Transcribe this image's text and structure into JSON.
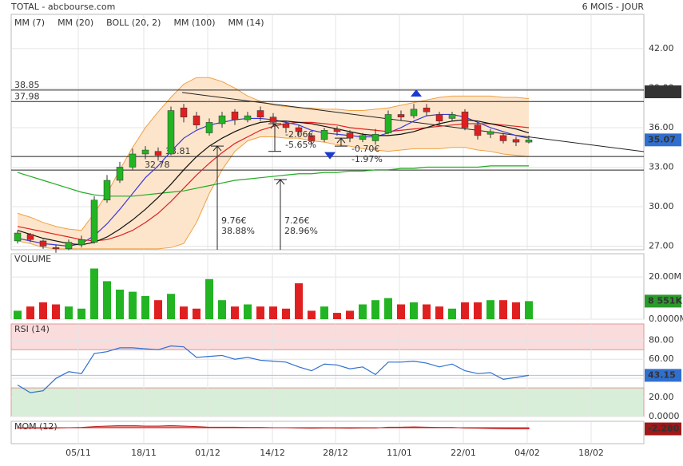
{
  "header": {
    "title": "TOTAL - abcbourse.com",
    "period": "6 MOIS - JOUR"
  },
  "chart_data": [
    {
      "type": "candlestick",
      "open": [
        27.4,
        27.9,
        27.4,
        26.9,
        26.8,
        27.1,
        27.3,
        30.5,
        32.0,
        33.0,
        34.0,
        34.2,
        34.0,
        37.5,
        36.9,
        35.6,
        36.3,
        37.2,
        36.6,
        37.3,
        36.8,
        36.3,
        36.0,
        35.4,
        35.1,
        35.9,
        35.6,
        35.1,
        35.0,
        35.6,
        37.0,
        36.9,
        37.5,
        37.0,
        36.7,
        37.2,
        36.2,
        35.5,
        35.4,
        35.1,
        34.9
      ],
      "high": [
        28.2,
        28.0,
        27.5,
        27.1,
        27.5,
        27.8,
        30.8,
        32.4,
        33.4,
        34.4,
        34.6,
        34.5,
        37.6,
        37.8,
        37.2,
        36.7,
        37.2,
        37.4,
        37.2,
        37.6,
        37.1,
        36.5,
        36.2,
        35.6,
        36.0,
        36.1,
        35.8,
        35.6,
        35.9,
        37.3,
        37.3,
        37.8,
        37.8,
        37.2,
        37.2,
        37.4,
        36.4,
        35.9,
        35.6,
        35.3,
        35.4
      ],
      "low": [
        27.2,
        27.3,
        26.8,
        26.5,
        26.7,
        26.9,
        27.2,
        30.3,
        31.8,
        32.8,
        33.6,
        33.5,
        33.9,
        36.4,
        35.9,
        35.4,
        36.0,
        36.2,
        36.4,
        36.5,
        36.1,
        35.6,
        35.4,
        34.7,
        34.9,
        35.4,
        34.9,
        34.9,
        34.7,
        35.5,
        36.5,
        36.7,
        36.9,
        36.2,
        36.5,
        35.8,
        35.1,
        35.2,
        34.8,
        34.6,
        34.8
      ],
      "close": [
        28.0,
        27.5,
        27.0,
        26.8,
        27.3,
        27.5,
        30.5,
        32.0,
        33.0,
        34.0,
        34.3,
        33.9,
        37.3,
        36.8,
        36.2,
        36.4,
        36.9,
        36.6,
        36.9,
        36.8,
        36.4,
        36.0,
        35.7,
        35.0,
        35.8,
        35.7,
        35.2,
        35.4,
        35.5,
        37.0,
        36.8,
        37.4,
        37.2,
        36.5,
        37.0,
        36.0,
        35.4,
        35.7,
        35.0,
        34.9,
        35.07
      ],
      "up_color": "#22b422",
      "down_color": "#e02020",
      "series": [
        {
          "name": "MM (7)",
          "color": "#3a3ad8",
          "values": [
            27.6,
            27.4,
            27.2,
            27.1,
            27.0,
            27.2,
            27.8,
            28.7,
            29.8,
            31,
            32.2,
            33.1,
            34.2,
            35.2,
            35.8,
            36.2,
            36.4,
            36.6,
            36.7,
            36.7,
            36.6,
            36.4,
            36.2,
            35.8,
            35.6,
            35.5,
            35.4,
            35.3,
            35.3,
            35.6,
            36,
            36.5,
            36.9,
            37,
            37,
            36.8,
            36.4,
            36,
            35.7,
            35.4,
            35.2
          ]
        },
        {
          "name": "MM (20)",
          "color": "#e02020",
          "values": [
            28.5,
            28.3,
            28.1,
            27.9,
            27.7,
            27.5,
            27.4,
            27.5,
            27.8,
            28.2,
            28.8,
            29.5,
            30.4,
            31.4,
            32.4,
            33.3,
            34.1,
            34.8,
            35.3,
            35.8,
            36.1,
            36.3,
            36.4,
            36.4,
            36.3,
            36.2,
            36,
            35.9,
            35.8,
            35.7,
            35.8,
            35.9,
            36,
            36.1,
            36.2,
            36.3,
            36.3,
            36.3,
            36.2,
            36.1,
            36.0
          ]
        },
        {
          "name": "BOLL (20, 2)",
          "color": "#f0a040",
          "band_color": "#fde5cc",
          "upper": [
            29.5,
            29.2,
            28.8,
            28.5,
            28.3,
            28.2,
            29.5,
            31,
            32.8,
            34.5,
            36,
            37.2,
            38.3,
            39.3,
            39.8,
            39.8,
            39.5,
            39.0,
            38.4,
            38.0,
            37.7,
            37.6,
            37.5,
            37.5,
            37.4,
            37.4,
            37.3,
            37.3,
            37.4,
            37.5,
            37.7,
            37.9,
            38.1,
            38.3,
            38.4,
            38.4,
            38.4,
            38.4,
            38.3,
            38.3,
            38.2
          ],
          "lower": [
            27.4,
            27.2,
            26.9,
            26.8,
            26.8,
            26.8,
            26.8,
            26.8,
            26.8,
            26.8,
            26.8,
            26.8,
            26.9,
            27.2,
            28.8,
            31,
            32.8,
            34.2,
            35.0,
            35.3,
            35.3,
            35.2,
            35.2,
            35.0,
            34.9,
            34.7,
            34.6,
            34.4,
            34.3,
            34.2,
            34.3,
            34.4,
            34.4,
            34.4,
            34.5,
            34.5,
            34.3,
            34.2,
            34.0,
            33.9,
            33.8
          ]
        },
        {
          "name": "MM (100)",
          "color": "#22aa22",
          "values": [
            32.6,
            32.3,
            32,
            31.7,
            31.4,
            31.1,
            30.9,
            30.8,
            30.8,
            30.8,
            30.9,
            31,
            31.1,
            31.2,
            31.4,
            31.6,
            31.8,
            32,
            32.1,
            32.2,
            32.3,
            32.4,
            32.5,
            32.5,
            32.6,
            32.6,
            32.7,
            32.7,
            32.8,
            32.8,
            32.9,
            32.9,
            33,
            33,
            33,
            33,
            33,
            33.1,
            33.1,
            33.1,
            33.1
          ]
        },
        {
          "name": "MM (14)",
          "color": "#111111",
          "values": [
            28.2,
            27.9,
            27.6,
            27.4,
            27.2,
            27.1,
            27.3,
            27.7,
            28.3,
            29,
            29.8,
            30.7,
            31.7,
            32.8,
            33.8,
            34.6,
            35.2,
            35.7,
            36.1,
            36.4,
            36.5,
            36.5,
            36.4,
            36.3,
            36.1,
            35.9,
            35.7,
            35.5,
            35.4,
            35.4,
            35.5,
            35.7,
            36,
            36.3,
            36.5,
            36.6,
            36.5,
            36.3,
            36.1,
            35.9,
            35.6
          ]
        }
      ],
      "ylim": [
        26.73,
        44.6
      ],
      "yticks": [
        {
          "value": 42,
          "label": "42.00"
        },
        {
          "value": 39,
          "label": "39.00"
        },
        {
          "value": 36,
          "label": "36.00"
        },
        {
          "value": 33,
          "label": "33.00"
        },
        {
          "value": 30,
          "label": "30.00"
        },
        {
          "value": 27,
          "label": "27.00"
        }
      ],
      "xlim": [
        -0.5,
        49
      ],
      "xticks": [
        {
          "value": 4.75,
          "label": "05/11"
        },
        {
          "value": 9.875,
          "label": "18/11"
        },
        {
          "value": 14.875,
          "label": "01/12"
        },
        {
          "value": 19.94,
          "label": "14/12"
        },
        {
          "value": 24.875,
          "label": "28/12"
        },
        {
          "value": 29.875,
          "label": "11/01"
        },
        {
          "value": 34.875,
          "label": "22/01"
        },
        {
          "value": 39.875,
          "label": "04/02"
        },
        {
          "value": 44.875,
          "label": "18/02"
        }
      ],
      "levels": [
        38.85,
        37.98,
        33.81,
        32.78
      ],
      "marker": 38.72,
      "trendline": [
        [
          12.875,
          38.67
        ],
        [
          49,
          34.18
        ]
      ],
      "annotations": [
        {
          "text": [
            "9.76€",
            "38.88%"
          ],
          "x": 15.625,
          "from": 34.6,
          "to": 26.73
        },
        {
          "text": [
            "7.26€",
            "28.96%"
          ],
          "x": 20.56,
          "from": 32.06,
          "to": 26.73
        },
        {
          "text": [
            "-2.06€",
            "-5.65%"
          ],
          "x": 20.125,
          "from": 36.3,
          "to": 34.2
        },
        {
          "text": [
            "-0.70€",
            "-1.97%"
          ],
          "x": 25.31,
          "from": 35.2,
          "to": 34.6
        }
      ],
      "signals": [
        {
          "direction": "up",
          "x": 31.19,
          "y": 38.6
        },
        {
          "direction": "down",
          "x": 24.44,
          "y": 33.9
        }
      ]
    },
    {
      "type": "bar",
      "title": "VOLUME",
      "values": [
        4,
        6,
        8,
        7,
        6,
        5,
        24,
        18,
        14,
        13,
        11,
        9,
        12,
        6,
        5,
        19,
        9,
        6,
        7,
        6,
        6,
        5,
        17,
        4,
        6,
        3,
        4,
        7,
        9,
        10,
        7,
        8,
        7,
        6,
        5,
        8,
        8,
        9,
        9,
        8,
        8.551
      ],
      "last_value_label": "8 551K",
      "ylim": [
        0,
        31
      ],
      "yticks": [
        {
          "value": 20,
          "label": "20.00M"
        },
        {
          "value": 0,
          "label": "0.0000M"
        }
      ]
    },
    {
      "type": "line",
      "title": "RSI (14)",
      "color": "#2f6fd0",
      "values": [
        33,
        25,
        27,
        40,
        47,
        45,
        66,
        68,
        72,
        72,
        71,
        70,
        74,
        73,
        62,
        63,
        64,
        60,
        62,
        59,
        58,
        57,
        52,
        48,
        55,
        54,
        50,
        52,
        44,
        57,
        57,
        58,
        56,
        52,
        55,
        48,
        45,
        46,
        39,
        41,
        43.15
      ],
      "ylim": [
        0,
        97
      ],
      "yticks": [
        {
          "value": 80,
          "label": "80.00"
        },
        {
          "value": 60,
          "label": "60.00"
        },
        {
          "value": 40,
          "label": "40.00"
        },
        {
          "value": 20,
          "label": "20.00"
        },
        {
          "value": 0,
          "label": "0.0000"
        }
      ],
      "zones": [
        {
          "from": 70,
          "to": 97,
          "color": "#fadcdc"
        },
        {
          "from": 0,
          "to": 30,
          "color": "#d8eed8"
        }
      ]
    },
    {
      "type": "area",
      "title": "MOM (12)",
      "color": "#c02020",
      "values": [
        -1,
        -1,
        -1,
        -0.5,
        0,
        0.5,
        2,
        3,
        4,
        4,
        3,
        3,
        4,
        3,
        2,
        1,
        1,
        1,
        0.5,
        0.5,
        0,
        0,
        -0.5,
        -1,
        -0.5,
        -0.5,
        -1,
        -0.5,
        -0.5,
        1,
        1,
        1.5,
        1,
        0.5,
        0.5,
        -0.5,
        -1,
        -1.5,
        -2,
        -2.2,
        -2.28
      ],
      "value_labels_last": "-2.280",
      "ylim": [
        -30,
        12
      ]
    }
  ]
}
